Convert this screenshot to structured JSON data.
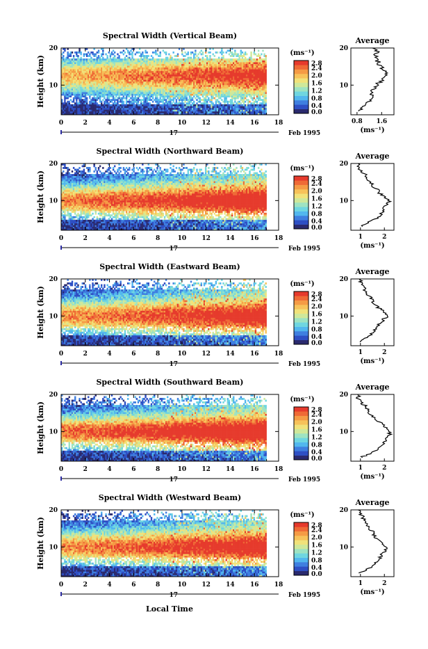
{
  "figure": {
    "date_label": "Feb 1995",
    "day_label": "17",
    "x_axis_label": "Local Time",
    "unit_label": "(ms⁻¹)",
    "average_title": "Average"
  },
  "colors": {
    "colormap": [
      "#2a2a6e",
      "#2e4fc4",
      "#3f7fe0",
      "#52b7ee",
      "#6fd6e0",
      "#9ee3c2",
      "#cfe89a",
      "#f1e27a",
      "#f7c25a",
      "#f59b45",
      "#ef6a36",
      "#e63a2c"
    ],
    "missing": "#ffffff"
  },
  "chart_data": [
    {
      "type": "heatmap",
      "title": "Spectral Width (Vertical Beam)",
      "ylabel": "Height (km)",
      "xlabel": "Local Time",
      "xlim": [
        0,
        18
      ],
      "xticks": [
        "0",
        "2",
        "4",
        "6",
        "8",
        "10",
        "12",
        "14",
        "16",
        "18"
      ],
      "ylim": [
        2,
        20
      ],
      "yticks": [
        "10",
        "20"
      ],
      "colorbar": {
        "ticks": [
          "2.8",
          "2.4",
          "2.0",
          "1.6",
          "1.2",
          "0.8",
          "0.4",
          "0.0"
        ],
        "range": [
          0,
          2.8
        ]
      },
      "data_end_hour": 17,
      "layer_center_km": 12.5,
      "layer_value": 1.8,
      "average_profile": {
        "xticks": [
          "0.8",
          "1.6"
        ],
        "xlim": [
          0.6,
          2.0
        ],
        "height_km": [
          3,
          4,
          5,
          6,
          7,
          8,
          9,
          10,
          11,
          12,
          13,
          14,
          15,
          16,
          17,
          18,
          19,
          20
        ],
        "value": [
          0.8,
          1.0,
          1.1,
          1.2,
          1.25,
          1.3,
          1.35,
          1.45,
          1.55,
          1.7,
          1.75,
          1.65,
          1.55,
          1.5,
          1.45,
          1.4,
          1.5,
          1.3
        ]
      }
    },
    {
      "type": "heatmap",
      "title": "Spectral Width (Northward Beam)",
      "ylabel": "Height (km)",
      "xlabel": "Local Time",
      "xlim": [
        0,
        18
      ],
      "xticks": [
        "0",
        "2",
        "4",
        "6",
        "8",
        "10",
        "12",
        "14",
        "16",
        "18"
      ],
      "ylim": [
        2,
        20
      ],
      "yticks": [
        "10",
        "20"
      ],
      "colorbar": {
        "ticks": [
          "2.8",
          "2.4",
          "2.0",
          "1.6",
          "1.2",
          "0.8",
          "0.4",
          "0.0"
        ],
        "range": [
          0,
          2.8
        ]
      },
      "data_end_hour": 17,
      "layer_center_km": 10,
      "layer_value": 2.1,
      "average_profile": {
        "xticks": [
          "1",
          "2"
        ],
        "xlim": [
          0.6,
          2.4
        ],
        "height_km": [
          3,
          4,
          5,
          6,
          7,
          8,
          9,
          10,
          11,
          12,
          13,
          14,
          15,
          16,
          17,
          18,
          19,
          20
        ],
        "value": [
          1.0,
          1.3,
          1.6,
          1.8,
          1.9,
          2.0,
          2.1,
          2.2,
          2.0,
          1.8,
          1.7,
          1.5,
          1.4,
          1.3,
          1.2,
          1.0,
          0.9,
          0.9
        ]
      }
    },
    {
      "type": "heatmap",
      "title": "Spectral Width (Eastward Beam)",
      "ylabel": "Height (km)",
      "xlabel": "Local Time",
      "xlim": [
        0,
        18
      ],
      "xticks": [
        "0",
        "2",
        "4",
        "6",
        "8",
        "10",
        "12",
        "14",
        "16",
        "18"
      ],
      "ylim": [
        2,
        20
      ],
      "yticks": [
        "10",
        "20"
      ],
      "colorbar": {
        "ticks": [
          "2.8",
          "2.4",
          "2.0",
          "1.6",
          "1.2",
          "0.8",
          "0.4",
          "0.0"
        ],
        "range": [
          0,
          2.8
        ]
      },
      "data_end_hour": 17,
      "layer_center_km": 10,
      "layer_value": 2.0,
      "average_profile": {
        "xticks": [
          "1",
          "2"
        ],
        "xlim": [
          0.6,
          2.4
        ],
        "height_km": [
          3,
          4,
          5,
          6,
          7,
          8,
          9,
          10,
          11,
          12,
          13,
          14,
          15,
          16,
          17,
          18,
          19,
          20
        ],
        "value": [
          1.0,
          1.2,
          1.4,
          1.6,
          1.7,
          1.8,
          1.95,
          2.1,
          2.0,
          1.8,
          1.6,
          1.5,
          1.4,
          1.3,
          1.2,
          1.1,
          1.0,
          1.0
        ]
      }
    },
    {
      "type": "heatmap",
      "title": "Spectral Width (Southward Beam)",
      "ylabel": "Height (km)",
      "xlabel": "Local Time",
      "xlim": [
        0,
        18
      ],
      "xticks": [
        "0",
        "2",
        "4",
        "6",
        "8",
        "10",
        "12",
        "14",
        "16",
        "18"
      ],
      "ylim": [
        2,
        20
      ],
      "yticks": [
        "10",
        "20"
      ],
      "colorbar": {
        "ticks": [
          "2.8",
          "2.4",
          "2.0",
          "1.6",
          "1.2",
          "0.8",
          "0.4",
          "0.0"
        ],
        "range": [
          0,
          2.8
        ]
      },
      "data_end_hour": 17,
      "layer_center_km": 10,
      "layer_value": 2.2,
      "average_profile": {
        "xticks": [
          "1",
          "2"
        ],
        "xlim": [
          0.6,
          2.4
        ],
        "height_km": [
          3,
          4,
          5,
          6,
          7,
          8,
          9,
          10,
          11,
          12,
          13,
          14,
          15,
          16,
          17,
          18,
          19,
          20
        ],
        "value": [
          1.0,
          1.4,
          1.7,
          1.9,
          2.0,
          2.1,
          2.2,
          2.25,
          2.1,
          1.9,
          1.7,
          1.5,
          1.4,
          1.3,
          1.2,
          1.0,
          0.9,
          0.9
        ]
      }
    },
    {
      "type": "heatmap",
      "title": "Spectral Width (Westward Beam)",
      "ylabel": "Height (km)",
      "xlabel": "Local Time",
      "xlim": [
        0,
        18
      ],
      "xticks": [
        "0",
        "2",
        "4",
        "6",
        "8",
        "10",
        "12",
        "14",
        "16",
        "18"
      ],
      "ylim": [
        2,
        20
      ],
      "yticks": [
        "10",
        "20"
      ],
      "colorbar": {
        "ticks": [
          "2.8",
          "2.4",
          "2.0",
          "1.6",
          "1.2",
          "0.8",
          "0.4",
          "0.0"
        ],
        "range": [
          0,
          2.8
        ]
      },
      "data_end_hour": 17,
      "layer_center_km": 10,
      "layer_value": 2.0,
      "average_profile": {
        "xticks": [
          "1",
          "2"
        ],
        "xlim": [
          0.6,
          2.4
        ],
        "height_km": [
          3,
          4,
          5,
          6,
          7,
          8,
          9,
          10,
          11,
          12,
          13,
          14,
          15,
          16,
          17,
          18,
          19,
          20
        ],
        "value": [
          1.0,
          1.3,
          1.5,
          1.7,
          1.8,
          1.9,
          2.0,
          2.1,
          1.9,
          1.7,
          1.6,
          1.5,
          1.4,
          1.3,
          1.2,
          1.1,
          1.0,
          0.9
        ]
      }
    }
  ]
}
